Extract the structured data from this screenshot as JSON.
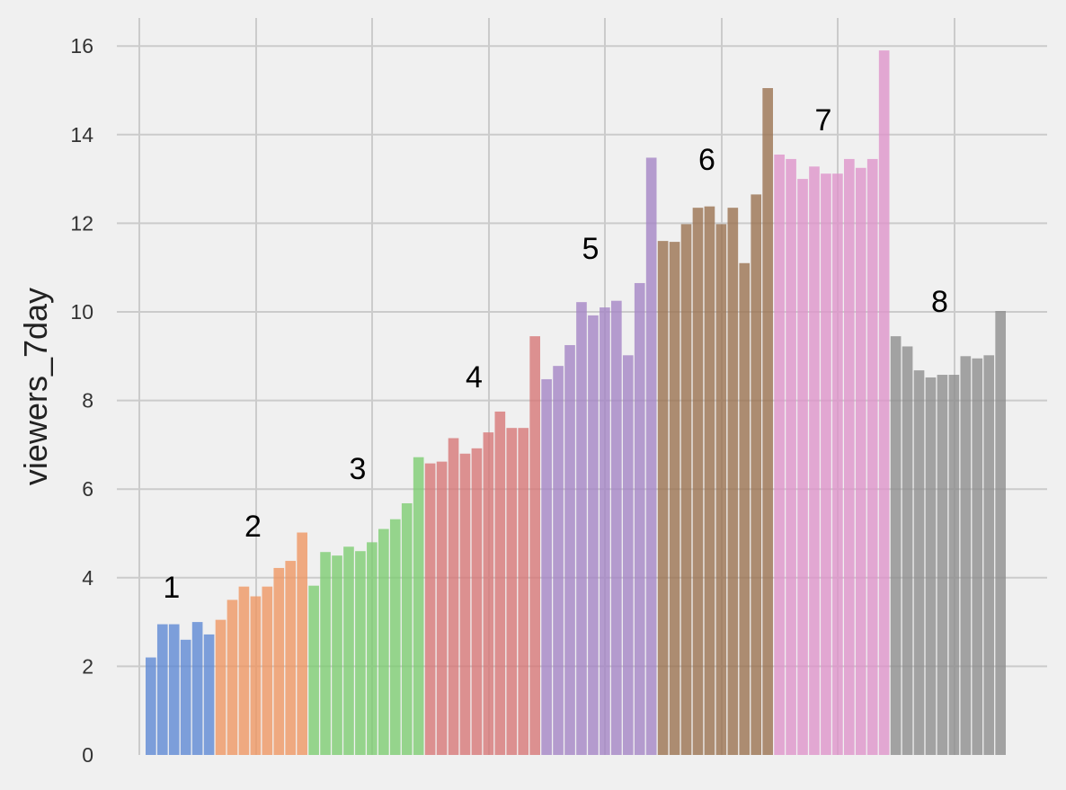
{
  "chart_data": {
    "type": "bar",
    "title": "",
    "xlabel": "",
    "ylabel": "viewers_7day",
    "ylim": [
      0,
      16.5
    ],
    "yticks": [
      0,
      2,
      4,
      6,
      8,
      10,
      12,
      14,
      16
    ],
    "grid": true,
    "groups": [
      {
        "label": "1",
        "color": "#5b86d4",
        "values": [
          2.2,
          2.95,
          2.95,
          2.6,
          3.0,
          2.72
        ]
      },
      {
        "label": "2",
        "color": "#ee9560",
        "values": [
          3.05,
          3.5,
          3.8,
          3.58,
          3.8,
          4.22,
          4.38,
          5.02
        ]
      },
      {
        "label": "3",
        "color": "#7bcc70",
        "values": [
          3.82,
          4.58,
          4.5,
          4.7,
          4.6,
          4.8,
          5.1,
          5.32,
          5.68,
          6.72
        ]
      },
      {
        "label": "4",
        "color": "#d67575",
        "values": [
          6.58,
          6.62,
          7.15,
          6.8,
          6.92,
          7.28,
          7.75,
          7.38,
          7.38,
          9.45
        ]
      },
      {
        "label": "5",
        "color": "#a383c4",
        "values": [
          8.48,
          8.78,
          9.25,
          10.22,
          9.92,
          10.1,
          10.25,
          9.02,
          10.65,
          13.48
        ]
      },
      {
        "label": "6",
        "color": "#99704d",
        "values": [
          11.6,
          11.58,
          11.98,
          12.35,
          12.38,
          11.98,
          12.35,
          11.1,
          12.65,
          15.05
        ]
      },
      {
        "label": "7",
        "color": "#de92c9",
        "values": [
          13.55,
          13.45,
          13.0,
          13.28,
          13.12,
          13.12,
          13.45,
          13.25,
          13.45,
          15.9
        ]
      },
      {
        "label": "8",
        "color": "#8c8c8c",
        "values": [
          9.45,
          9.22,
          8.68,
          8.52,
          8.58,
          8.58,
          9.0,
          8.95,
          9.02,
          10.02
        ]
      }
    ]
  }
}
